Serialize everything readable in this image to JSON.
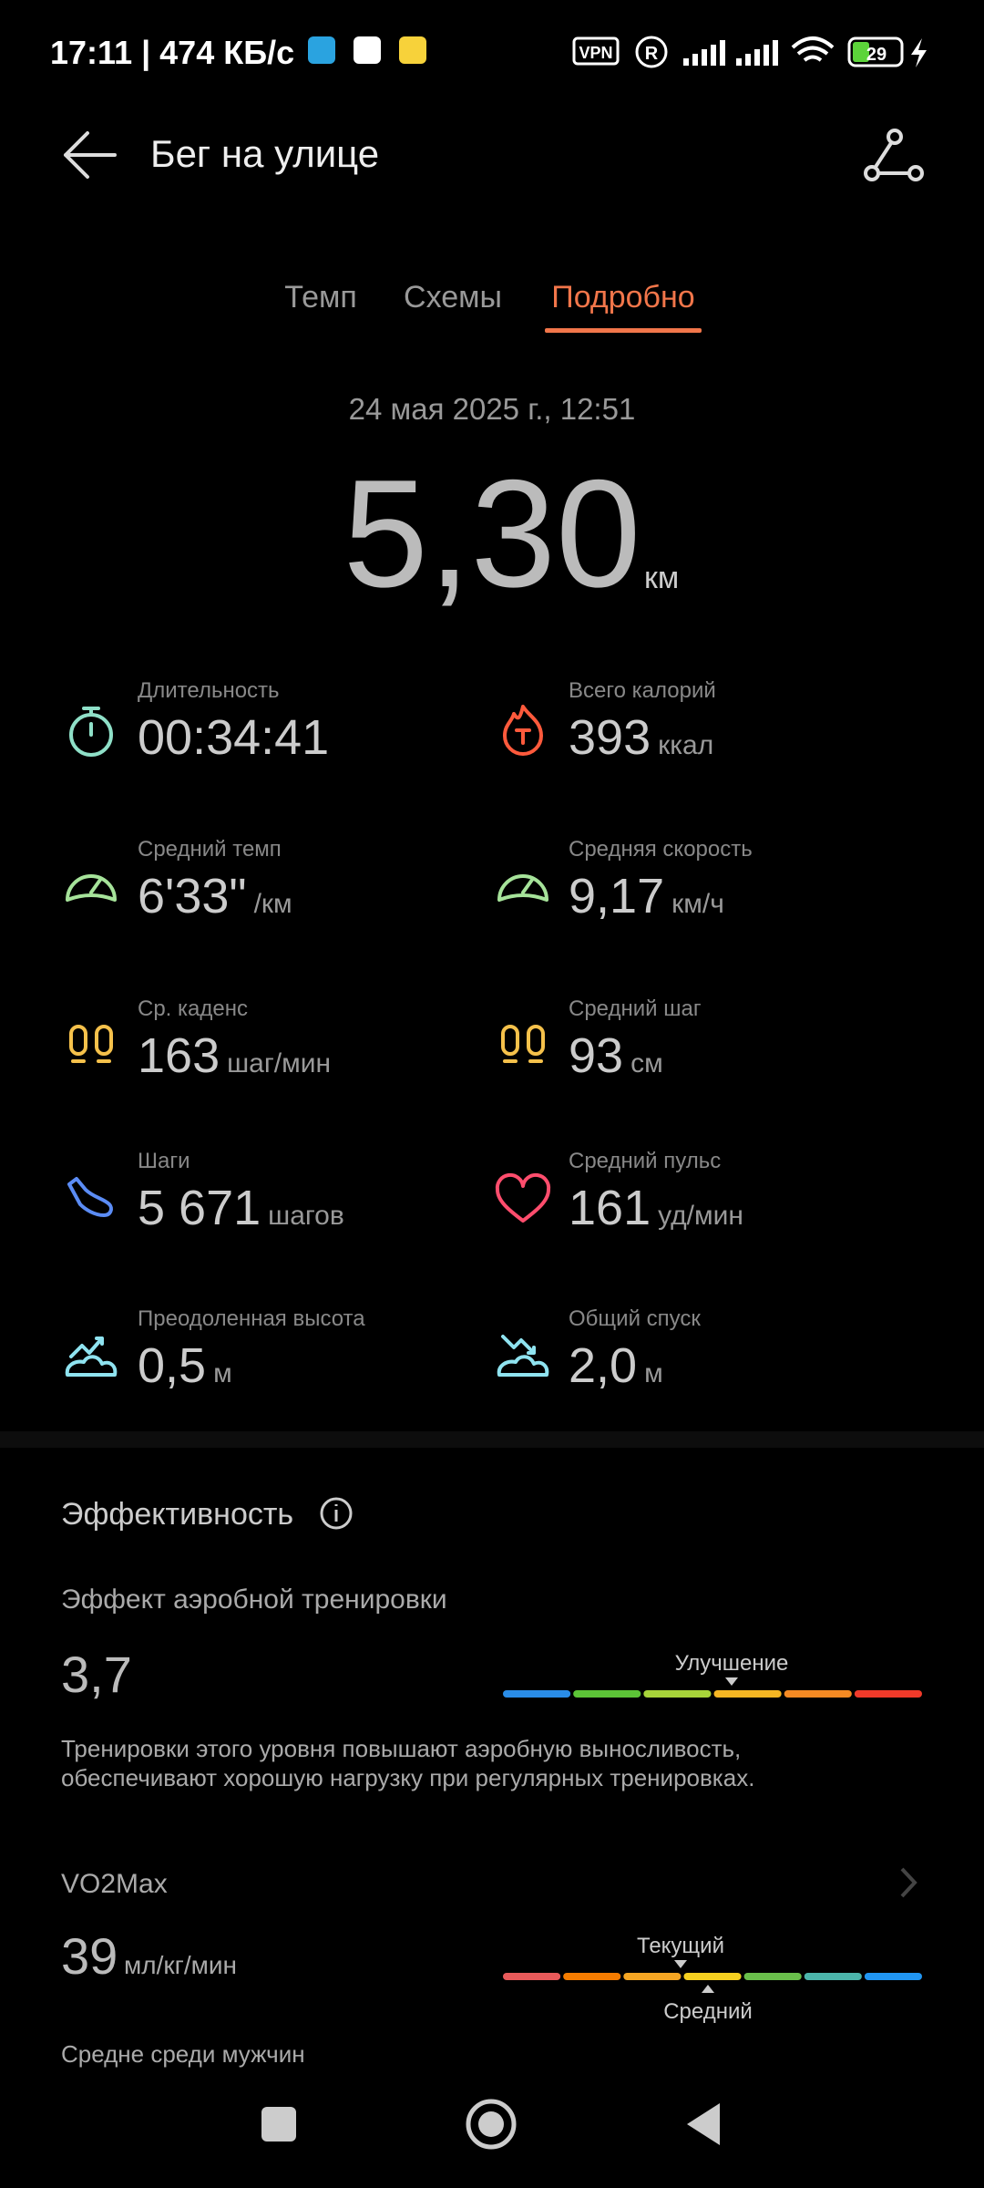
{
  "status_bar": {
    "time_speed": "17:11 | 474 КБ/с",
    "vpn": "VPN",
    "registered": "R",
    "battery": "29"
  },
  "header": {
    "title": "Бег на улице"
  },
  "tabs": [
    "Темп",
    "Схемы",
    "Подробно"
  ],
  "summary": {
    "date": "24 мая 2025 г., 12:51",
    "distance": "5,30",
    "unit": "км"
  },
  "metrics": [
    {
      "label": "Длительность",
      "value": "00:34:41"
    },
    {
      "label": "Всего калорий",
      "value": "393",
      "unit": "ккал"
    },
    {
      "label": "Средний темп",
      "value": "6'33\"",
      "unit": "/км"
    },
    {
      "label": "Средняя скорость",
      "value": "9,17",
      "unit": "км/ч"
    },
    {
      "label": "Ср. каденс",
      "value": "163",
      "unit": "шаг/мин"
    },
    {
      "label": "Средний шаг",
      "value": "93",
      "unit": "см"
    },
    {
      "label": "Шаги",
      "value": "5 671",
      "unit": "шагов"
    },
    {
      "label": "Средний пульс",
      "value": "161",
      "unit": "уд/мин"
    },
    {
      "label": "Преодоленная высота",
      "value": "0,5",
      "unit": "м"
    },
    {
      "label": "Общий спуск",
      "value": "2,0",
      "unit": "м"
    }
  ],
  "efficiency": {
    "title": "Эффективность",
    "aerobic": {
      "title": "Эффект аэробной тренировки",
      "value": "3,7",
      "marker": "Улучшение",
      "description": [
        "Тренировки этого уровня повышают аэробную выносливость,",
        "обеспечивают хорошую нагрузку при регулярных тренировках."
      ]
    },
    "vo2max": {
      "title": "VO2Max",
      "value": "39",
      "unit": "мл/кг/мин",
      "current_marker": "Текущий",
      "average_marker": "Средний",
      "note": "Средне среди мужчин"
    }
  }
}
